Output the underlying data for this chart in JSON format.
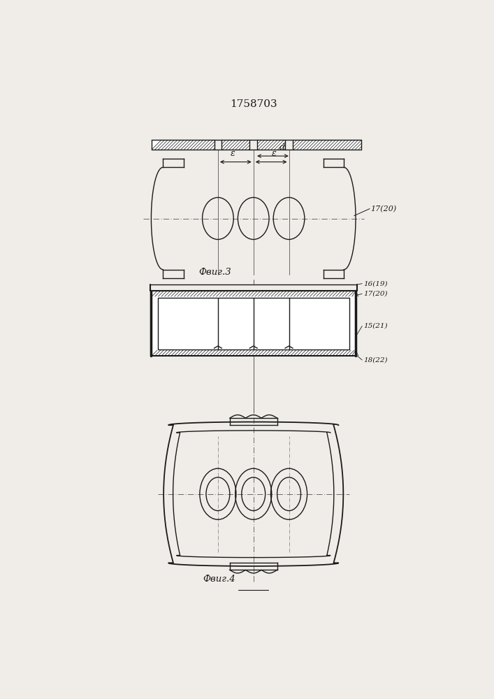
{
  "title": "1758703",
  "title_fontsize": 11,
  "bg_color": "#f0ede8",
  "line_color": "#1a1a1a",
  "fig3_label": "Фвиг.3",
  "fig4_label": "Фвиг.4",
  "label_17_20": "17(20)",
  "label_16_19": "16(19)",
  "label_17_20b": "17(20)",
  "label_15_21": "15(21)",
  "label_18_22": "18(22)",
  "label_d": "d",
  "label_e": "ε"
}
